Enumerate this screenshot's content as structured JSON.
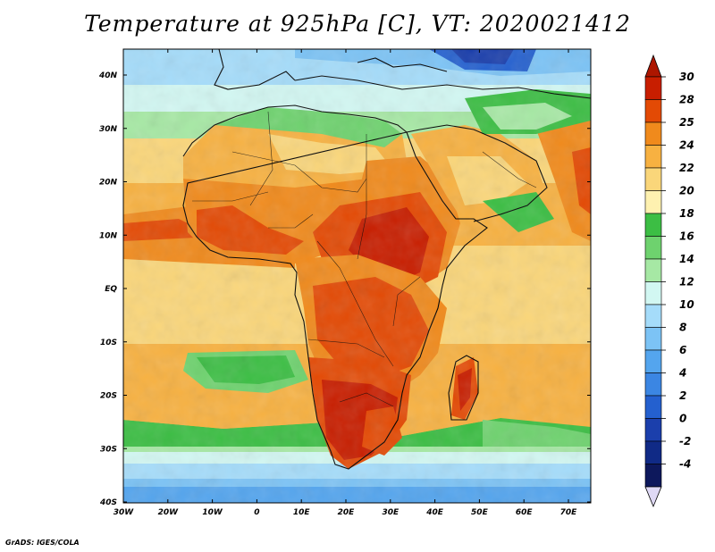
{
  "map": {
    "title": "Temperature at 925hPa [C], VT: 2020021412",
    "lat_labels": [
      "40N",
      "30N",
      "20N",
      "10N",
      "EQ",
      "10S",
      "20S",
      "30S",
      "40S"
    ],
    "lon_labels": [
      "30W",
      "20W",
      "10W",
      "0",
      "10E",
      "20E",
      "30E",
      "40E",
      "50E",
      "60E",
      "70E"
    ],
    "extent": {
      "lon_min": -30,
      "lon_max": 75,
      "lat_min": -40,
      "lat_max": 45
    },
    "projection": "latlon",
    "variable": "temperature",
    "level": "925hPa",
    "units": "C",
    "valid_time": "2020021412"
  },
  "colorbar": {
    "levels": [
      "30",
      "28",
      "25",
      "24",
      "22",
      "20",
      "18",
      "16",
      "14",
      "12",
      "10",
      "8",
      "6",
      "4",
      "2",
      "0",
      "-2",
      "-4"
    ],
    "colors": [
      "#c81e00",
      "#e34a05",
      "#f08a1c",
      "#f7b141",
      "#fad67a",
      "#fef1b0",
      "#3cbe44",
      "#6ed26e",
      "#a6e8a4",
      "#d2f7f2",
      "#a5dcfa",
      "#7cc3f5",
      "#54a5ee",
      "#3b86e3",
      "#2460cf",
      "#1b3fac",
      "#102a86",
      "#0d185c"
    ],
    "over_color": "#ad1600",
    "under_color": "#dfd9f5"
  },
  "credit": "GrADS: IGES/COLA"
}
